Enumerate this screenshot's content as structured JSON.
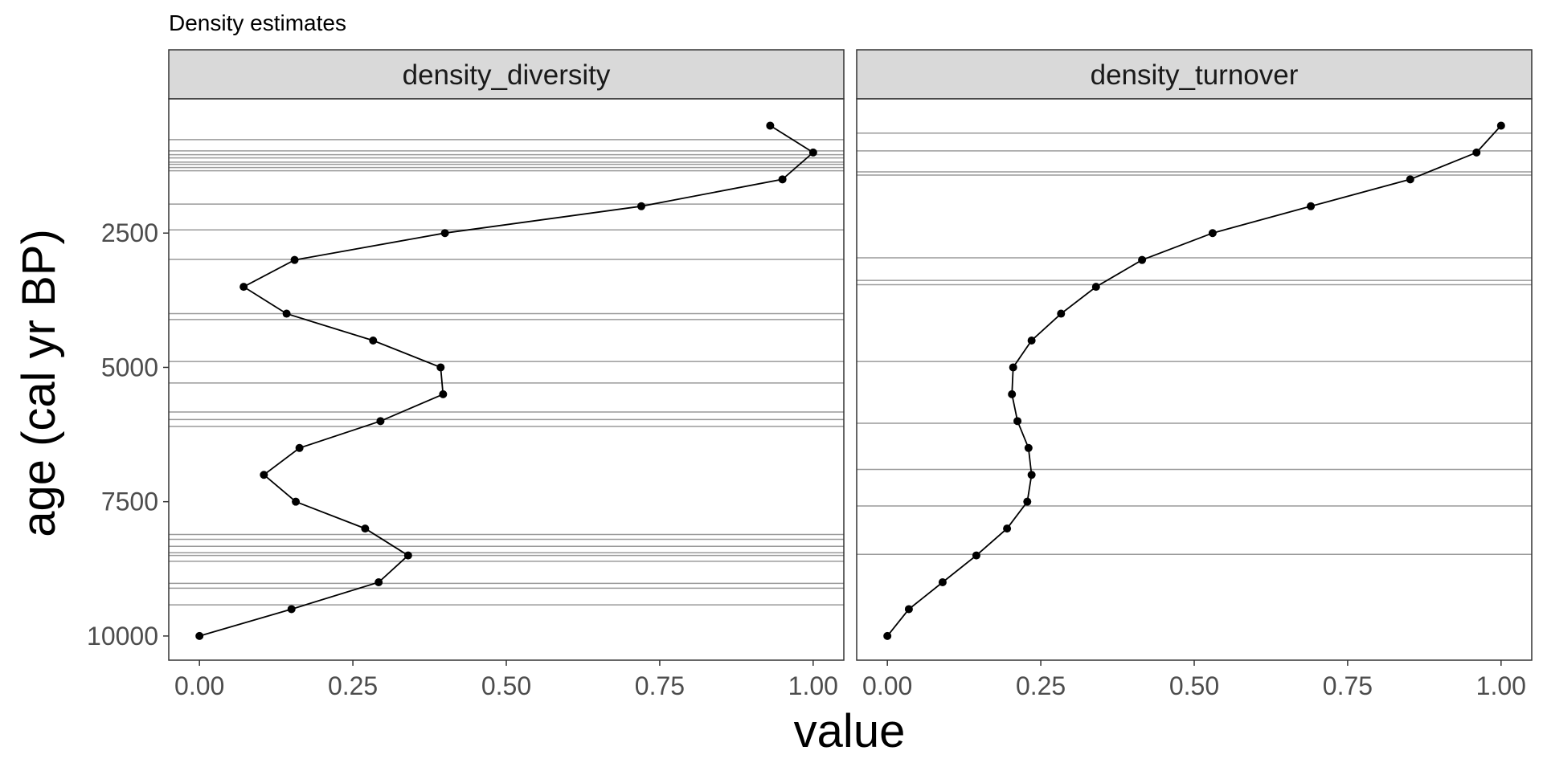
{
  "chart_data": {
    "type": "line",
    "title": "Density estimates",
    "xlabel": "value",
    "ylabel": "age (cal yr BP)",
    "xlim": [
      -0.05,
      1.05
    ],
    "ylim": [
      10450,
      0
    ],
    "y_reversed": true,
    "xticks": [
      "0.00",
      "0.25",
      "0.50",
      "0.75",
      "1.00"
    ],
    "xtick_values": [
      0,
      0.25,
      0.5,
      0.75,
      1.0
    ],
    "yticks": [
      "2500",
      "5000",
      "7500",
      "10000"
    ],
    "ytick_values": [
      2500,
      5000,
      7500,
      10000
    ],
    "grid": false,
    "colors": {
      "line": "#000000",
      "hline": "#9a9a9a",
      "strip": "#d9d9d9",
      "border": "#333333"
    },
    "facets": [
      {
        "name": "density_diversity",
        "points": [
          {
            "x": 0.93,
            "y": 500
          },
          {
            "x": 1.0,
            "y": 1000
          },
          {
            "x": 0.95,
            "y": 1500
          },
          {
            "x": 0.72,
            "y": 2000
          },
          {
            "x": 0.4,
            "y": 2500
          },
          {
            "x": 0.155,
            "y": 3000
          },
          {
            "x": 0.072,
            "y": 3500
          },
          {
            "x": 0.142,
            "y": 4000
          },
          {
            "x": 0.283,
            "y": 4500
          },
          {
            "x": 0.393,
            "y": 5000
          },
          {
            "x": 0.397,
            "y": 5500
          },
          {
            "x": 0.295,
            "y": 6000
          },
          {
            "x": 0.163,
            "y": 6500
          },
          {
            "x": 0.105,
            "y": 7000
          },
          {
            "x": 0.157,
            "y": 7500
          },
          {
            "x": 0.27,
            "y": 8000
          },
          {
            "x": 0.34,
            "y": 8500
          },
          {
            "x": 0.292,
            "y": 9000
          },
          {
            "x": 0.15,
            "y": 9500
          },
          {
            "x": 0.0,
            "y": 10000
          }
        ],
        "hlines": [
          760,
          970,
          1040,
          1100,
          1180,
          1220,
          1280,
          1340,
          1960,
          2440,
          2990,
          4000,
          4110,
          4890,
          5290,
          5830,
          5970,
          6100,
          8110,
          8200,
          8330,
          8450,
          8500,
          8610,
          9020,
          9110,
          9420
        ]
      },
      {
        "name": "density_turnover",
        "points": [
          {
            "x": 1.0,
            "y": 500
          },
          {
            "x": 0.96,
            "y": 1000
          },
          {
            "x": 0.852,
            "y": 1500
          },
          {
            "x": 0.69,
            "y": 2000
          },
          {
            "x": 0.53,
            "y": 2500
          },
          {
            "x": 0.415,
            "y": 3000
          },
          {
            "x": 0.34,
            "y": 3500
          },
          {
            "x": 0.283,
            "y": 4000
          },
          {
            "x": 0.235,
            "y": 4500
          },
          {
            "x": 0.205,
            "y": 5000
          },
          {
            "x": 0.203,
            "y": 5500
          },
          {
            "x": 0.212,
            "y": 6000
          },
          {
            "x": 0.23,
            "y": 6500
          },
          {
            "x": 0.235,
            "y": 7000
          },
          {
            "x": 0.228,
            "y": 7500
          },
          {
            "x": 0.195,
            "y": 8000
          },
          {
            "x": 0.145,
            "y": 8500
          },
          {
            "x": 0.09,
            "y": 9000
          },
          {
            "x": 0.035,
            "y": 9500
          },
          {
            "x": 0.0,
            "y": 10000
          }
        ],
        "hlines": [
          640,
          970,
          1360,
          1420,
          2960,
          3380,
          3460,
          4890,
          6040,
          6900,
          7580,
          8480
        ]
      }
    ]
  }
}
